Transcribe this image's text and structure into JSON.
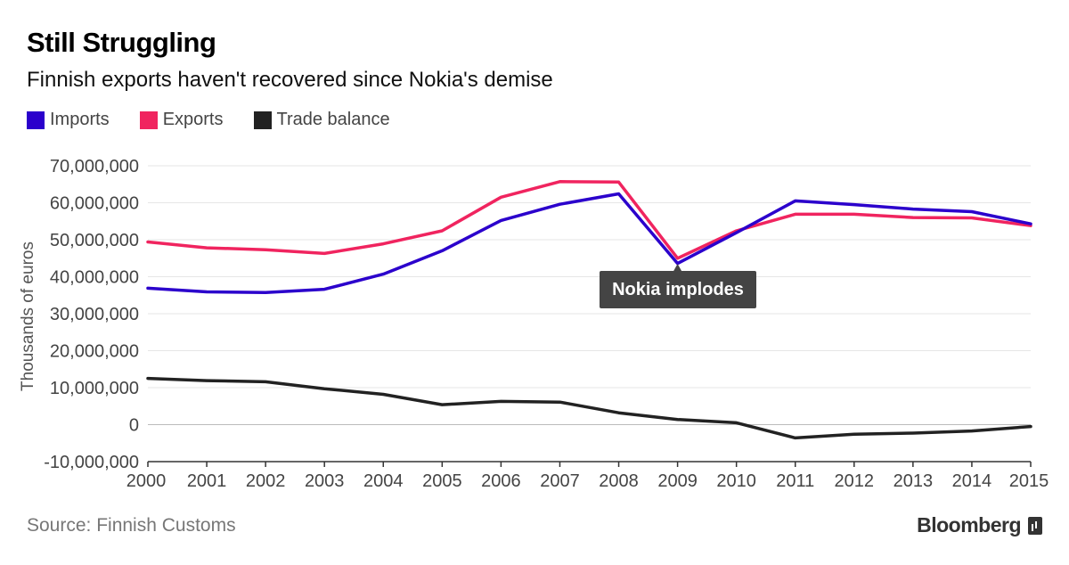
{
  "title": "Still Struggling",
  "subtitle": "Finnish exports haven't recovered since Nokia's demise",
  "source": "Source: Finnish Customs",
  "brand": "Bloomberg",
  "brand_icon": "bloomberg-chart-icon",
  "chart_data": {
    "type": "line",
    "x": [
      "2000",
      "2001",
      "2002",
      "2003",
      "2004",
      "2005",
      "2006",
      "2007",
      "2008",
      "2009",
      "2010",
      "2011",
      "2012",
      "2013",
      "2014",
      "2015"
    ],
    "series": [
      {
        "name": "Imports",
        "color": "#2b00cc",
        "values": [
          36900000,
          35900000,
          35700000,
          36600000,
          40700000,
          47000000,
          55200000,
          59600000,
          62400000,
          43600000,
          51900000,
          60500000,
          59500000,
          58300000,
          57600000,
          54300000
        ]
      },
      {
        "name": "Exports",
        "color": "#f0245f",
        "values": [
          49400000,
          47800000,
          47300000,
          46300000,
          48900000,
          52400000,
          61500000,
          65700000,
          65600000,
          45000000,
          52400000,
          56900000,
          56900000,
          56000000,
          55900000,
          53800000
        ]
      },
      {
        "name": "Trade balance",
        "color": "#222222",
        "values": [
          12500000,
          11900000,
          11600000,
          9700000,
          8200000,
          5400000,
          6300000,
          6100000,
          3200000,
          1400000,
          500000,
          -3600000,
          -2600000,
          -2300000,
          -1700000,
          -500000
        ]
      }
    ],
    "ylabel": "Thousands of euros",
    "xlabel": "",
    "ylim": [
      -10000000,
      70000000
    ],
    "yticks": [
      "-10,000,000",
      "0",
      "10,000,000",
      "20,000,000",
      "30,000,000",
      "40,000,000",
      "50,000,000",
      "60,000,000",
      "70,000,000"
    ],
    "ytick_values": [
      -10000000,
      0,
      10000000,
      20000000,
      30000000,
      40000000,
      50000000,
      60000000,
      70000000
    ],
    "grid": true,
    "legend_position": "top-left",
    "annotation": {
      "text": "Nokia implodes",
      "x": "2009",
      "y": 43600000
    }
  }
}
